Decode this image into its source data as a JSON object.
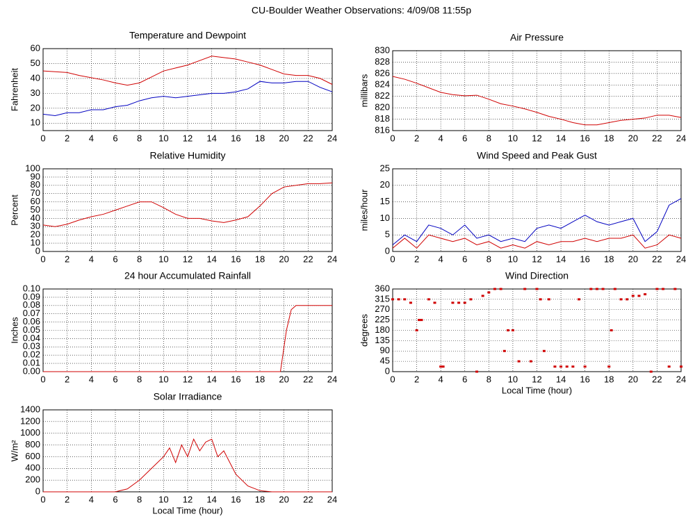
{
  "title": "CU-Boulder Weather Observations: 4/09/08 11:55p",
  "chart_data": [
    {
      "type": "line",
      "title": "Temperature and Dewpoint",
      "ylabel": "Fahrenheit",
      "x": [
        0,
        1,
        2,
        3,
        4,
        5,
        6,
        7,
        8,
        9,
        10,
        11,
        12,
        13,
        14,
        15,
        16,
        17,
        18,
        19,
        20,
        21,
        22,
        23,
        24
      ],
      "series": [
        {
          "color": "#d00000",
          "values": [
            45,
            44.5,
            44,
            42,
            40.5,
            39,
            37,
            35.5,
            37,
            41,
            45,
            47,
            49,
            52,
            55,
            54,
            53,
            51,
            49,
            46,
            43,
            42,
            42,
            40,
            36
          ]
        },
        {
          "color": "#0000c0",
          "values": [
            16,
            15,
            17,
            17,
            19,
            19,
            21,
            22,
            25,
            27,
            28,
            27,
            28,
            29,
            30,
            30,
            31,
            33,
            38,
            37,
            37,
            38,
            38,
            34,
            31
          ]
        }
      ],
      "xlim": [
        0,
        24
      ],
      "xticks": [
        0,
        2,
        4,
        6,
        8,
        10,
        12,
        14,
        16,
        18,
        20,
        22,
        24
      ],
      "ylim": [
        5,
        60
      ],
      "yticks": [
        10,
        20,
        30,
        40,
        50,
        60
      ],
      "grid": true
    },
    {
      "type": "line",
      "title": "Air Pressure",
      "ylabel": "millibars",
      "x": [
        0,
        1,
        2,
        3,
        4,
        5,
        6,
        7,
        8,
        9,
        10,
        11,
        12,
        13,
        14,
        15,
        16,
        17,
        18,
        19,
        20,
        21,
        22,
        23,
        24
      ],
      "series": [
        {
          "color": "#d00000",
          "values": [
            825.5,
            825,
            824.3,
            823.5,
            822.7,
            822.3,
            822.1,
            822.2,
            821.5,
            820.7,
            820.3,
            819.8,
            819.2,
            818.5,
            818,
            817.4,
            817,
            817,
            817.4,
            817.8,
            818,
            818.2,
            818.7,
            818.7,
            818.3
          ]
        }
      ],
      "xlim": [
        0,
        24
      ],
      "xticks": [
        0,
        2,
        4,
        6,
        8,
        10,
        12,
        14,
        16,
        18,
        20,
        22,
        24
      ],
      "ylim": [
        816,
        830
      ],
      "yticks": [
        816,
        818,
        820,
        822,
        824,
        826,
        828,
        830
      ],
      "grid": true
    },
    {
      "type": "line",
      "title": "Relative Humidity",
      "ylabel": "Percent",
      "x": [
        0,
        1,
        2,
        3,
        4,
        5,
        6,
        7,
        8,
        9,
        10,
        11,
        12,
        13,
        14,
        15,
        16,
        17,
        18,
        19,
        20,
        21,
        22,
        23,
        24
      ],
      "series": [
        {
          "color": "#d00000",
          "values": [
            32,
            30,
            33,
            38,
            42,
            45,
            50,
            55,
            60,
            60,
            53,
            45,
            40,
            40,
            37,
            35,
            38,
            42,
            55,
            70,
            78,
            80,
            82,
            82,
            83
          ]
        }
      ],
      "xlim": [
        0,
        24
      ],
      "xticks": [
        0,
        2,
        4,
        6,
        8,
        10,
        12,
        14,
        16,
        18,
        20,
        22,
        24
      ],
      "ylim": [
        0,
        100
      ],
      "yticks": [
        0,
        10,
        20,
        30,
        40,
        50,
        60,
        70,
        80,
        90,
        100
      ],
      "grid": true
    },
    {
      "type": "line",
      "title": "Wind Speed and Peak Gust",
      "ylabel": "miles/hour",
      "x": [
        0,
        1,
        2,
        3,
        4,
        5,
        6,
        7,
        8,
        9,
        10,
        11,
        12,
        13,
        14,
        15,
        16,
        17,
        18,
        19,
        20,
        21,
        22,
        23,
        24
      ],
      "series": [
        {
          "color": "#0000c0",
          "values": [
            2,
            5,
            3,
            8,
            7,
            5,
            8,
            4,
            5,
            3,
            4,
            3,
            7,
            8,
            7,
            9,
            11,
            9,
            8,
            9,
            10,
            3,
            6,
            14,
            16
          ]
        },
        {
          "color": "#d00000",
          "values": [
            1,
            4,
            1,
            5,
            4,
            3,
            4,
            2,
            3,
            1,
            2,
            1,
            3,
            2,
            3,
            3,
            4,
            3,
            4,
            4,
            5,
            1,
            2,
            5,
            4
          ]
        }
      ],
      "xlim": [
        0,
        24
      ],
      "xticks": [
        0,
        2,
        4,
        6,
        8,
        10,
        12,
        14,
        16,
        18,
        20,
        22,
        24
      ],
      "ylim": [
        0,
        25
      ],
      "yticks": [
        0,
        5,
        10,
        15,
        20,
        25
      ],
      "grid": true
    },
    {
      "type": "line",
      "title": "24 hour Accumulated Rainfall",
      "ylabel": "Inches",
      "x": [
        0,
        19.7,
        20.2,
        20.6,
        21,
        24
      ],
      "series": [
        {
          "color": "#d00000",
          "values": [
            0,
            0,
            0.05,
            0.075,
            0.08,
            0.08
          ]
        }
      ],
      "xlim": [
        0,
        24
      ],
      "xticks": [
        0,
        2,
        4,
        6,
        8,
        10,
        12,
        14,
        16,
        18,
        20,
        22,
        24
      ],
      "ylim": [
        0,
        0.1
      ],
      "yticks": [
        {
          "value": 0,
          "label": "0.00"
        },
        {
          "value": 0.01,
          "label": "0.01"
        },
        {
          "value": 0.02,
          "label": "0.02"
        },
        {
          "value": 0.03,
          "label": "0.03"
        },
        {
          "value": 0.04,
          "label": "0.04"
        },
        {
          "value": 0.05,
          "label": "0.05"
        },
        {
          "value": 0.06,
          "label": "0.06"
        },
        {
          "value": 0.07,
          "label": "0.07"
        },
        {
          "value": 0.08,
          "label": "0.08"
        },
        {
          "value": 0.09,
          "label": "0.09"
        },
        {
          "value": 0.1,
          "label": "0.10"
        }
      ],
      "grid": true
    },
    {
      "type": "scatter",
      "title": "Wind Direction",
      "ylabel": "degrees",
      "xlabel": "Local Time (hour)",
      "x": [
        0,
        0.5,
        1,
        1.5,
        2,
        2.2,
        2.4,
        3,
        3.5,
        4,
        4.2,
        5,
        5.5,
        6,
        6.5,
        7,
        7.5,
        8,
        8.5,
        9,
        9.3,
        9.6,
        10,
        10.5,
        11,
        11.5,
        12,
        12.3,
        12.6,
        13,
        13.5,
        14,
        14.5,
        15,
        15.5,
        16,
        16.5,
        17,
        17.5,
        18,
        18.2,
        18.5,
        19,
        19.5,
        20,
        20.5,
        21,
        21.5,
        22,
        22.5,
        23,
        23.5,
        24
      ],
      "series": [
        {
          "color": "#d00000",
          "values": [
            315,
            315,
            315,
            300,
            180,
            225,
            225,
            315,
            300,
            22,
            22,
            300,
            300,
            300,
            315,
            0,
            330,
            345,
            360,
            360,
            90,
            180,
            180,
            45,
            360,
            45,
            360,
            315,
            90,
            315,
            22,
            22,
            22,
            22,
            315,
            22,
            360,
            360,
            360,
            22,
            180,
            360,
            315,
            315,
            330,
            330,
            337,
            0,
            360,
            360,
            22,
            360,
            22
          ]
        }
      ],
      "xlim": [
        0,
        24
      ],
      "xticks": [
        0,
        2,
        4,
        6,
        8,
        10,
        12,
        14,
        16,
        18,
        20,
        22,
        24
      ],
      "ylim": [
        0,
        360
      ],
      "yticks": [
        0,
        45,
        90,
        135,
        180,
        225,
        270,
        315,
        360
      ],
      "grid": true
    },
    {
      "type": "line",
      "title": "Solar Irradiance",
      "ylabel": "W/m²",
      "xlabel": "Local Time (hour)",
      "x": [
        0,
        6,
        7,
        8,
        9,
        10,
        10.5,
        11,
        11.5,
        12,
        12.5,
        13,
        13.5,
        14,
        14.5,
        15,
        16,
        17,
        18,
        19,
        24
      ],
      "series": [
        {
          "color": "#d00000",
          "values": [
            0,
            0,
            50,
            200,
            400,
            600,
            750,
            500,
            800,
            600,
            900,
            700,
            850,
            900,
            600,
            700,
            300,
            100,
            20,
            0,
            0
          ]
        }
      ],
      "xlim": [
        0,
        24
      ],
      "xticks": [
        0,
        2,
        4,
        6,
        8,
        10,
        12,
        14,
        16,
        18,
        20,
        22,
        24
      ],
      "ylim": [
        0,
        1400
      ],
      "yticks": [
        0,
        200,
        400,
        600,
        800,
        1000,
        1200,
        1400
      ],
      "grid": true
    }
  ]
}
